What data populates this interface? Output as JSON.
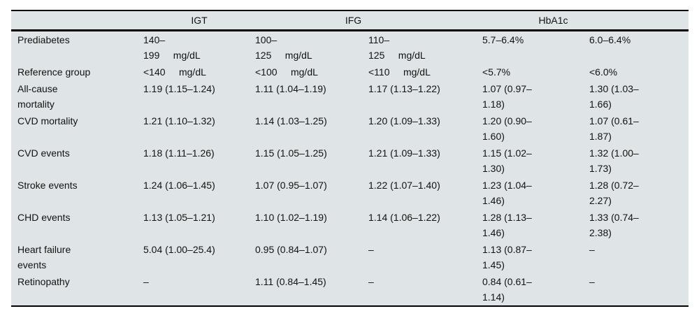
{
  "table": {
    "background_color": "#dfe4e7",
    "rule_color": "#000000",
    "text_color": "#121212",
    "column_groups": [
      {
        "label": "",
        "span": 1
      },
      {
        "label": "IGT",
        "span": 1
      },
      {
        "label": "IFG",
        "span": 2
      },
      {
        "label": "HbA1c",
        "span": 2
      }
    ],
    "rows": [
      {
        "label": "Prediabetes",
        "values": [
          "140–\n199     mg/dL",
          "100–\n125     mg/dL",
          "110–\n125     mg/dL",
          "5.7–6.4%",
          "6.0–6.4%"
        ]
      },
      {
        "label": "Reference group",
        "values": [
          "<140     mg/dL",
          "<100     mg/dL",
          "<110     mg/dL",
          "<5.7%",
          "<6.0%"
        ]
      },
      {
        "label": "All-cause\nmortality",
        "values": [
          "1.19 (1.15–1.24)",
          "1.11 (1.04–1.19)",
          "1.17 (1.13–1.22)",
          "1.07 (0.97–\n1.18)",
          "1.30 (1.03–\n1.66)"
        ]
      },
      {
        "label": "CVD mortality",
        "values": [
          "1.21 (1.10–1.32)",
          "1.14 (1.03–1.25)",
          "1.20 (1.09–1.33)",
          "1.20 (0.90–\n1.60)",
          "1.07 (0.61–\n1.87)"
        ]
      },
      {
        "label": "CVD events",
        "values": [
          "1.18 (1.11–1.26)",
          "1.15 (1.05–1.25)",
          "1.21 (1.09–1.33)",
          "1.15 (1.02–\n1.30)",
          "1.32 (1.00–\n1.73)"
        ]
      },
      {
        "label": "Stroke events",
        "values": [
          "1.24 (1.06–1.45)",
          "1.07 (0.95–1.07)",
          "1.22 (1.07–1.40)",
          "1.23 (1.04–\n1.46)",
          "1.28 (0.72–\n2.27)"
        ]
      },
      {
        "label": "CHD events",
        "values": [
          "1.13 (1.05–1.21)",
          "1.10 (1.02–1.19)",
          "1.14 (1.06–1.22)",
          "1.28 (1.13–\n1.46)",
          "1.33 (0.74–\n2.38)"
        ]
      },
      {
        "label": "Heart failure\nevents",
        "values": [
          "5.04 (1.00–25.4)",
          "0.95 (0.84–1.07)",
          "–",
          "1.13 (0.87–\n1.45)",
          "–"
        ]
      },
      {
        "label": "Retinopathy",
        "values": [
          "–",
          "1.11 (0.84–1.45)",
          "–",
          "0.84 (0.61–\n1.14)",
          "–"
        ]
      }
    ]
  }
}
